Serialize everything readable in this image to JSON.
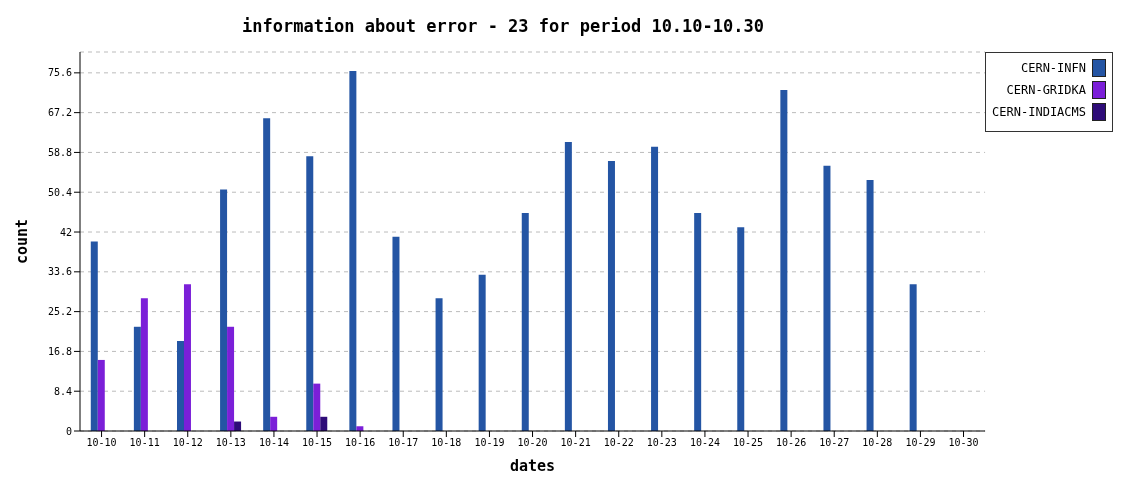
{
  "chart_data": {
    "type": "bar",
    "title": "information about error - 23 for period 10.10-10.30",
    "xlabel": "dates",
    "ylabel": "count",
    "categories": [
      "10-10",
      "10-11",
      "10-12",
      "10-13",
      "10-14",
      "10-15",
      "10-16",
      "10-17",
      "10-18",
      "10-19",
      "10-20",
      "10-21",
      "10-22",
      "10-23",
      "10-24",
      "10-25",
      "10-26",
      "10-27",
      "10-28",
      "10-29",
      "10-30"
    ],
    "series": [
      {
        "name": "CERN-INFN",
        "color": "#2455a4",
        "values": [
          40,
          22,
          19,
          51,
          66,
          58,
          76,
          41,
          28,
          33,
          46,
          61,
          57,
          60,
          46,
          43,
          72,
          56,
          53,
          31,
          0
        ]
      },
      {
        "name": "CERN-GRIDKA",
        "color": "#7b1fd8",
        "values": [
          15,
          28,
          31,
          22,
          3,
          10,
          1,
          0,
          0,
          0,
          0,
          0,
          0,
          0,
          0,
          0,
          0,
          0,
          0,
          0,
          0
        ]
      },
      {
        "name": "CERN-INDIACMS",
        "color": "#2e0c78",
        "values": [
          0,
          0,
          0,
          2,
          0,
          3,
          0,
          0,
          0,
          0,
          0,
          0,
          0,
          0,
          0,
          0,
          0,
          0,
          0,
          0,
          0
        ]
      }
    ],
    "ylim": [
      0,
      80
    ],
    "yticks": [
      0,
      8.4,
      16.8,
      25.2,
      33.6,
      42,
      50.4,
      58.8,
      67.2,
      75.6
    ],
    "grid": "y",
    "legend": "top right"
  }
}
